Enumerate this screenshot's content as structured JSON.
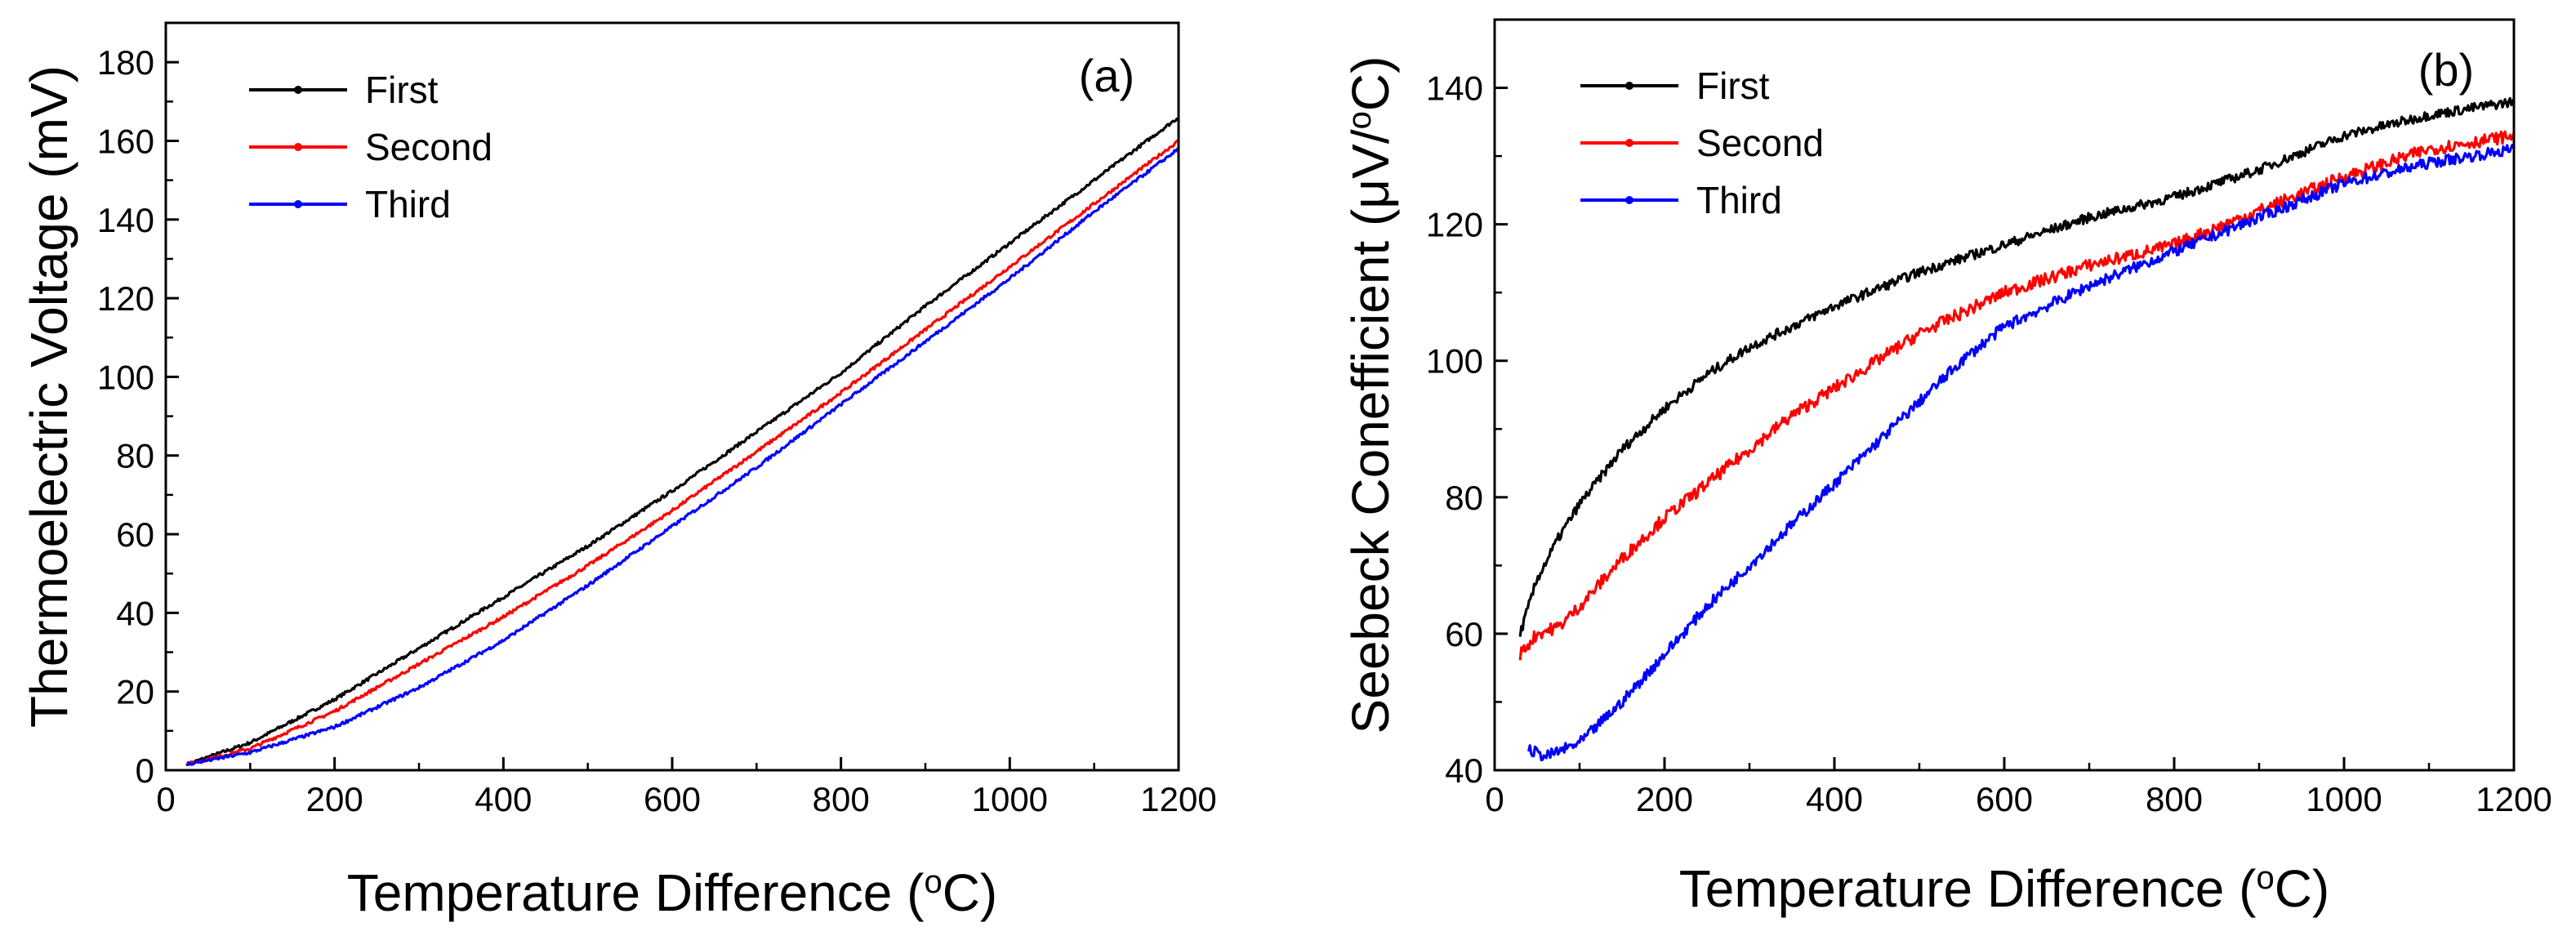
{
  "chart_data": [
    {
      "type": "line",
      "panel_label": "(a)",
      "xlabel": "Temperature Difference (°C)",
      "xlabel_parts": {
        "pre": "Temperature Difference (",
        "sup": "o",
        "post": "C)"
      },
      "ylabel": "Thermoelectric Voltage (mV)",
      "xlim": [
        0,
        1200
      ],
      "ylim": [
        0,
        190
      ],
      "xticks": [
        0,
        200,
        400,
        600,
        800,
        1000,
        1200
      ],
      "yticks": [
        0,
        20,
        40,
        60,
        80,
        100,
        120,
        140,
        160,
        180
      ],
      "grid": false,
      "legend_position": "top-left",
      "series": [
        {
          "name": "First",
          "color": "#000000",
          "noise": 0.4,
          "x": [
            25,
            100,
            200,
            300,
            400,
            500,
            600,
            700,
            800,
            900,
            1000,
            1100,
            1200
          ],
          "y": [
            1.5,
            7,
            18,
            31,
            44,
            57,
            71,
            86,
            101,
            118,
            134,
            150,
            166
          ]
        },
        {
          "name": "Second",
          "color": "#ff0000",
          "noise": 0.4,
          "x": [
            25,
            100,
            200,
            300,
            400,
            500,
            600,
            700,
            800,
            900,
            1000,
            1100,
            1200
          ],
          "y": [
            1.5,
            5.5,
            15,
            27,
            39,
            52,
            66,
            81,
            96,
            112,
            128,
            144,
            160
          ]
        },
        {
          "name": "Third",
          "color": "#0000ff",
          "noise": 0.4,
          "x": [
            25,
            100,
            200,
            300,
            400,
            500,
            600,
            700,
            800,
            900,
            1000,
            1100,
            1200
          ],
          "y": [
            1.5,
            4.5,
            11,
            21,
            33,
            47,
            62,
            77,
            93,
            109,
            125,
            142,
            158
          ]
        }
      ]
    },
    {
      "type": "line",
      "panel_label": "(b)",
      "xlabel": "Temperature Difference (°C)",
      "xlabel_parts": {
        "pre": "Temperature Difference (",
        "sup": "o",
        "post": "C)"
      },
      "ylabel": "Seebeck Conefficient (μV/°C)",
      "ylabel_parts": {
        "pre": "Seebeck Conefficient (μV/",
        "sup": "o",
        "post": "C)"
      },
      "xlim": [
        0,
        1200
      ],
      "ylim": [
        40,
        150
      ],
      "xticks": [
        0,
        200,
        400,
        600,
        800,
        1000,
        1200
      ],
      "yticks": [
        40,
        60,
        80,
        100,
        120,
        140
      ],
      "grid": false,
      "legend_position": "top-left",
      "series": [
        {
          "name": "First",
          "color": "#000000",
          "noise": 0.7,
          "x": [
            30,
            50,
            75,
            100,
            150,
            200,
            250,
            300,
            350,
            400,
            500,
            600,
            700,
            800,
            900,
            1000,
            1100,
            1200
          ],
          "y": [
            60,
            68,
            74,
            79,
            87,
            93,
            98,
            102,
            105,
            108,
            113,
            117,
            121,
            124,
            128,
            133,
            136,
            138
          ]
        },
        {
          "name": "Second",
          "color": "#ff0000",
          "noise": 0.9,
          "x": [
            30,
            50,
            75,
            100,
            150,
            200,
            250,
            300,
            350,
            400,
            450,
            500,
            600,
            700,
            800,
            900,
            1000,
            1100,
            1200
          ],
          "y": [
            57,
            60,
            61,
            64,
            71,
            77,
            82,
            87,
            92,
            96,
            100,
            104,
            110,
            114,
            117,
            122,
            127,
            131,
            133
          ]
        },
        {
          "name": "Third",
          "color": "#0000ff",
          "noise": 0.8,
          "x": [
            40,
            60,
            80,
            100,
            150,
            200,
            250,
            300,
            350,
            400,
            450,
            500,
            550,
            600,
            700,
            800,
            900,
            1000,
            1100,
            1200
          ],
          "y": [
            43,
            42,
            43,
            44,
            50,
            57,
            64,
            70,
            76,
            82,
            88,
            94,
            100,
            105,
            111,
            116,
            121,
            126,
            129,
            131
          ]
        }
      ]
    }
  ]
}
